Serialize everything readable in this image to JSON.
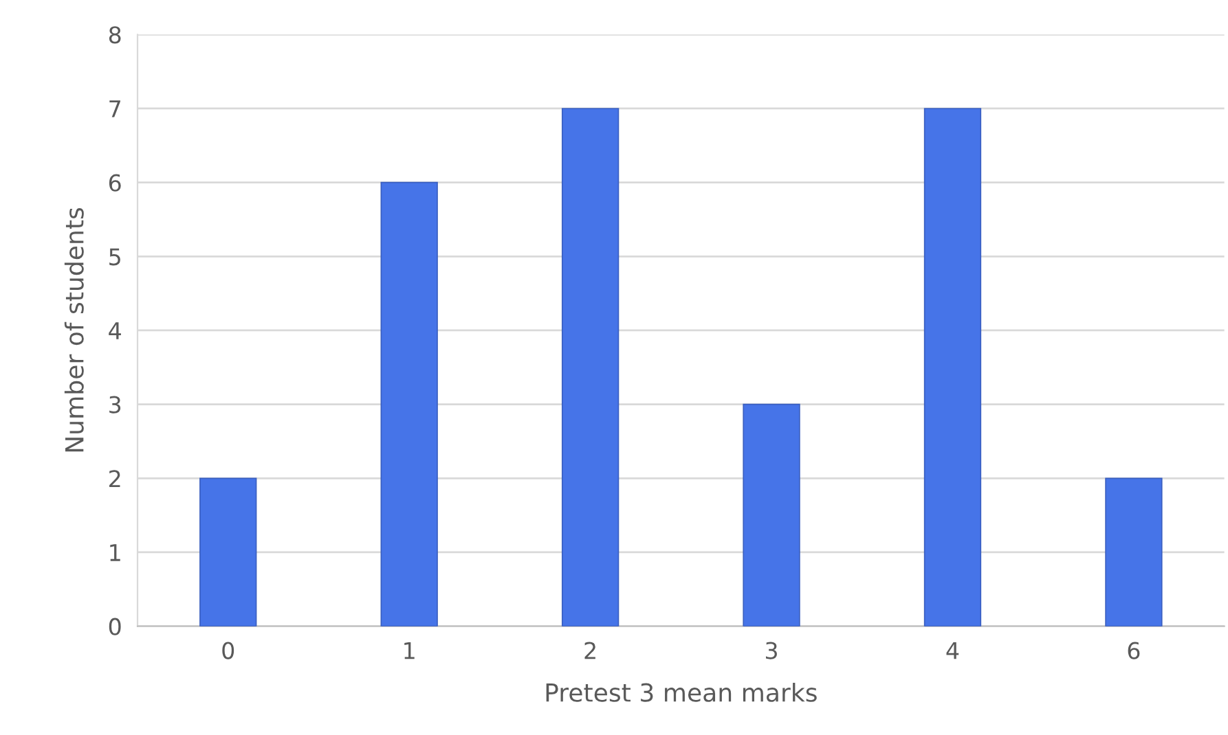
{
  "chart_data": {
    "type": "bar",
    "xlabel": "Pretest 3 mean marks",
    "ylabel": "Number of students",
    "categories": [
      "0",
      "1",
      "2",
      "3",
      "4",
      "6"
    ],
    "values": [
      2,
      6,
      7,
      3,
      7,
      2
    ],
    "color": "#4674e8",
    "ylim": [
      0,
      8
    ],
    "yticks": [
      0,
      1,
      2,
      3,
      4,
      5,
      6,
      7,
      8
    ],
    "grid": "y",
    "legend": false
  }
}
